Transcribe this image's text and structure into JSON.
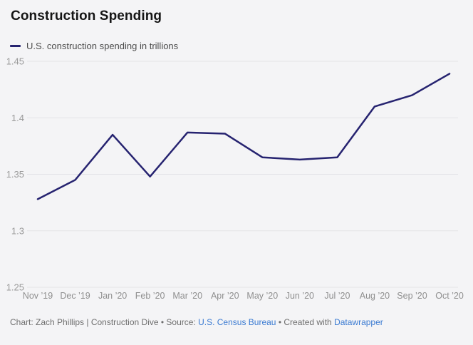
{
  "header": {
    "title": "Construction Spending"
  },
  "legend": {
    "label": "U.S. construction spending in trillions"
  },
  "chart_data": {
    "type": "line",
    "title": "Construction Spending",
    "categories": [
      "Nov ’19",
      "Dec ’19",
      "Jan ’20",
      "Feb ’20",
      "Mar ’20",
      "Apr ’20",
      "May ’20",
      "Jun ’20",
      "Jul ’20",
      "Aug ’20",
      "Sep ’20",
      "Oct ’20"
    ],
    "series": [
      {
        "name": "U.S. construction spending in trillions",
        "values": [
          1.328,
          1.345,
          1.385,
          1.348,
          1.387,
          1.386,
          1.365,
          1.363,
          1.365,
          1.41,
          1.42,
          1.439
        ]
      }
    ],
    "xlabel": "",
    "ylabel": "",
    "ylim": [
      1.25,
      1.45
    ],
    "yticks": [
      1.25,
      1.3,
      1.35,
      1.4,
      1.45
    ],
    "grid": "horizontal",
    "legend_position": "top-left",
    "line_color": "#262370"
  },
  "footer": {
    "byline": "Chart: Zach Phillips | Construction Dive • Source: ",
    "source_link": "U.S. Census Bureau",
    "created_with": " • Created with ",
    "tool_link": "Datawrapper"
  },
  "colors": {
    "background": "#f4f4f6",
    "line": "#262370",
    "link": "#3b7bd2",
    "gridline": "#e3e3e7",
    "axis_label": "#979797"
  }
}
